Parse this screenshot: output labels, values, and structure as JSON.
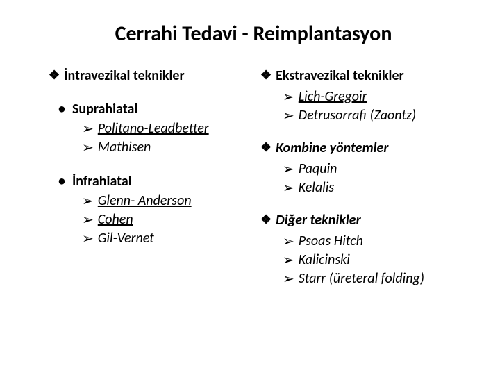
{
  "title": "Cerrahi Tedavi - Reimplantasyon",
  "left": {
    "heading": "İntravezikal teknikler",
    "sub1": {
      "label": "Suprahiatal",
      "items": [
        "Politano-Leadbetter",
        "Mathisen"
      ]
    },
    "sub2": {
      "label": "İnfrahiatal",
      "items": [
        "Glenn- Anderson",
        "Cohen",
        "Gil-Vernet"
      ]
    }
  },
  "right": {
    "sec1": {
      "heading": "Ekstravezikal teknikler",
      "items": [
        "Lich-Gregoir",
        "Detrusorrafi (Zaontz)"
      ]
    },
    "sec2": {
      "heading": "Kombine yöntemler",
      "items": [
        "Paquin",
        "Kelalis"
      ]
    },
    "sec3": {
      "heading": "Diğer teknikler",
      "items": [
        "Psoas Hitch",
        "Kalicinski",
        "Starr (üreteral folding)"
      ]
    }
  },
  "bullets": {
    "diamond": "❖",
    "arrow": "➢",
    "dot": "•"
  }
}
